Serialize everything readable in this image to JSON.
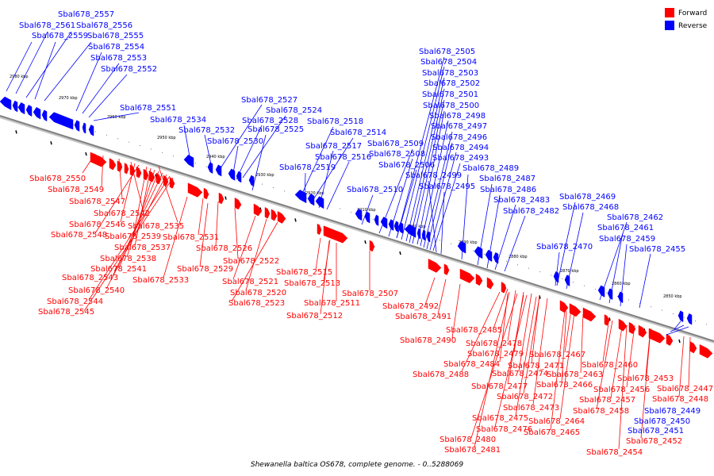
{
  "caption": "Shewanella baltica OS678, complete genome. - 0..5288069",
  "legend": [
    {
      "label": "Forward",
      "color": "#ff0000"
    },
    {
      "label": "Reverse",
      "color": "#0000ff"
    }
  ],
  "colors": {
    "forward": "#ff0000",
    "reverse": "#0000ff",
    "axis": "#808080"
  },
  "ticks": [
    "2980 kbp",
    "2970 kbp",
    "2960 kbp",
    "2950 kbp",
    "2940 kbp",
    "2930 kbp",
    "2920 kbp",
    "2910 kbp",
    "2900 kbp",
    "2890 kbp",
    "2880 kbp",
    "2870 kbp",
    "2860 kbp",
    "2850 kbp"
  ],
  "reverse_labels": [
    "Sbal678_2557",
    "Sbal678_2561",
    "Sbal678_2556",
    "Sbal678_2559",
    "Sbal678_2555",
    "Sbal678_2554",
    "Sbal678_2553",
    "Sbal678_2552",
    "Sbal678_2551",
    "Sbal678_2534",
    "Sbal678_2532",
    "Sbal678_2530",
    "Sbal678_2527",
    "Sbal678_2524",
    "Sbal678_2528",
    "Sbal678_2525",
    "Sbal678_2518",
    "Sbal678_2514",
    "Sbal678_2517",
    "Sbal678_2516",
    "Sbal678_2519",
    "Sbal678_2510",
    "Sbal678_2509",
    "Sbal678_2508",
    "Sbal678_2506",
    "Sbal678_2505",
    "Sbal678_2504",
    "Sbal678_2503",
    "Sbal678_2502",
    "Sbal678_2501",
    "Sbal678_2500",
    "Sbal678_2498",
    "Sbal678_2497",
    "Sbal678_2496",
    "Sbal678_2494",
    "Sbal678_2493",
    "Sbal678_2499",
    "Sbal678_2495",
    "Sbal678_2489",
    "Sbal678_2487",
    "Sbal678_2486",
    "Sbal678_2483",
    "Sbal678_2482",
    "Sbal678_2469",
    "Sbal678_2468",
    "Sbal678_2462",
    "Sbal678_2461",
    "Sbal678_2459",
    "Sbal678_2470",
    "Sbal678_2455",
    "Sbal678_2449",
    "Sbal678_2450",
    "Sbal678_2451"
  ],
  "forward_labels": [
    "Sbal678_2550",
    "Sbal678_2549",
    "Sbal678_2547",
    "Sbal678_2542",
    "Sbal678_2546",
    "Sbal678_2535",
    "Sbal678_2548",
    "Sbal678_2539",
    "Sbal678_2537",
    "Sbal678_2538",
    "Sbal678_2541",
    "Sbal678_2543",
    "Sbal678_2540",
    "Sbal678_2544",
    "Sbal678_2545",
    "Sbal678_2531",
    "Sbal678_2526",
    "Sbal678_2522",
    "Sbal678_2529",
    "Sbal678_2533",
    "Sbal678_2521",
    "Sbal678_2520",
    "Sbal678_2523",
    "Sbal678_2515",
    "Sbal678_2513",
    "Sbal678_2507",
    "Sbal678_2511",
    "Sbal678_2512",
    "Sbal678_2492",
    "Sbal678_2491",
    "Sbal678_2490",
    "Sbal678_2485",
    "Sbal678_2478",
    "Sbal678_2479",
    "Sbal678_2484",
    "Sbal678_2471",
    "Sbal678_2488",
    "Sbal678_2474",
    "Sbal678_2477",
    "Sbal678_2472",
    "Sbal678_2473",
    "Sbal678_2475",
    "Sbal678_2476",
    "Sbal678_2480",
    "Sbal678_2481",
    "Sbal678_2467",
    "Sbal678_2460",
    "Sbal678_2463",
    "Sbal678_2466",
    "Sbal678_2464",
    "Sbal678_2465",
    "Sbal678_2453",
    "Sbal678_2456",
    "Sbal678_2457",
    "Sbal678_2458",
    "Sbal678_2452",
    "Sbal678_2454",
    "Sbal678_2447",
    "Sbal678_2448"
  ]
}
